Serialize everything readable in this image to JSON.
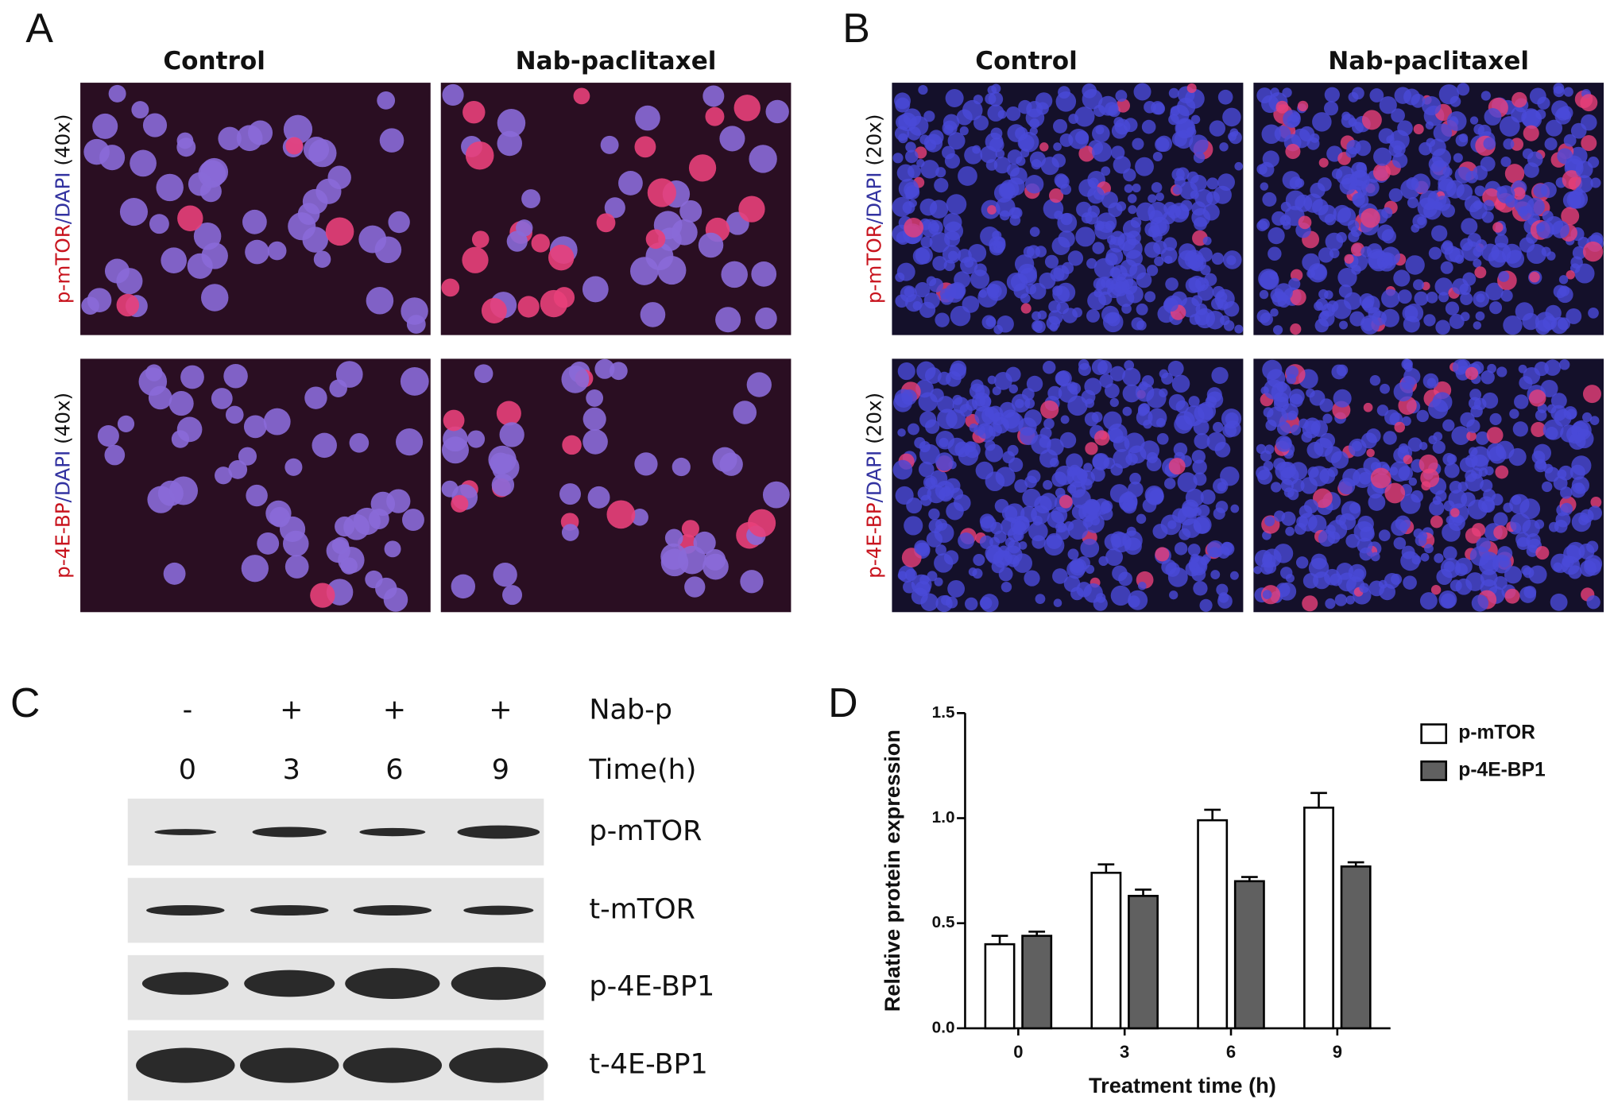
{
  "panel_a": {
    "label": "A",
    "columns": [
      "Control",
      "Nab-paclitaxel"
    ],
    "rows": [
      {
        "marker": "p-mTOR",
        "counterstain": "/DAPI",
        "magnification": "(40x)"
      },
      {
        "marker": "p-4E-BP",
        "counterstain": "/DAPI",
        "magnification": "(40x)"
      }
    ]
  },
  "panel_b": {
    "label": "B",
    "columns": [
      "Control",
      "Nab-paclitaxel"
    ],
    "rows": [
      {
        "marker": "p-mTOR",
        "counterstain": "/DAPI",
        "magnification": "(20x)"
      },
      {
        "marker": "p-4E-BP",
        "counterstain": "/DAPI",
        "magnification": "(20x)"
      }
    ]
  },
  "panel_c": {
    "label": "C",
    "treatment_label": "Nab-p",
    "treatment": [
      "-",
      "+",
      "+",
      "+"
    ],
    "time_label": "Time(h)",
    "times": [
      0,
      3,
      6,
      9
    ],
    "blots": [
      "p-mTOR",
      "t-mTOR",
      "p-4E-BP1",
      "t-4E-BP1"
    ]
  },
  "chart_data": {
    "label": "D",
    "type": "bar",
    "categories": [
      "0",
      "3",
      "6",
      "9"
    ],
    "series": [
      {
        "name": "p-mTOR",
        "color": "#ffffff",
        "values": [
          0.4,
          0.74,
          0.99,
          1.05
        ],
        "errors": [
          0.04,
          0.04,
          0.05,
          0.07
        ]
      },
      {
        "name": "p-4E-BP1",
        "color": "#606060",
        "values": [
          0.44,
          0.63,
          0.7,
          0.77
        ],
        "errors": [
          0.02,
          0.03,
          0.02,
          0.02
        ]
      }
    ],
    "ylim": [
      0,
      1.5
    ],
    "yticks": [
      {
        "value": 0,
        "label": "0.0"
      },
      0.5,
      {
        "value": 1,
        "label": "1.0"
      },
      1.5
    ],
    "ylabel": "Relative protein expression",
    "xlabel": "Treatment time (h)",
    "legend": "top-right"
  }
}
